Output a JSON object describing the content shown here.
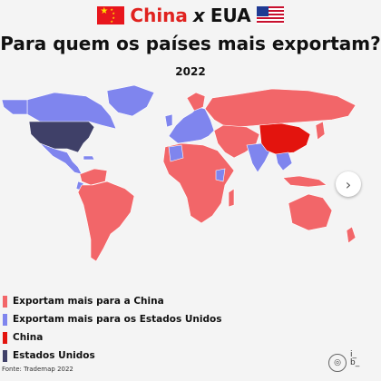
{
  "header": {
    "china": "China",
    "x": "x",
    "eua": "EUA",
    "flag_china_icon": "china-flag-icon",
    "flag_us_icon": "us-flag-icon"
  },
  "title": "Para quem os países mais exportam?",
  "year": "2022",
  "colors": {
    "china_partner": "#f26669",
    "us_partner": "#7f85ee",
    "china": "#e3140e",
    "usa": "#3f4068",
    "background": "#f4f4f4"
  },
  "legend": [
    {
      "label": "Exportam mais para a China",
      "color": "#f26669"
    },
    {
      "label": "Exportam mais para os Estados Unidos",
      "color": "#7f85ee"
    },
    {
      "label": "China",
      "color": "#e3140e"
    },
    {
      "label": "Estados Unidos",
      "color": "#3f4068"
    }
  ],
  "source": "Fonte: Trademap 2022",
  "brand": "i_\nb_",
  "next_icon": "chevron-right-icon",
  "logo_icon": "ib-logo-icon"
}
